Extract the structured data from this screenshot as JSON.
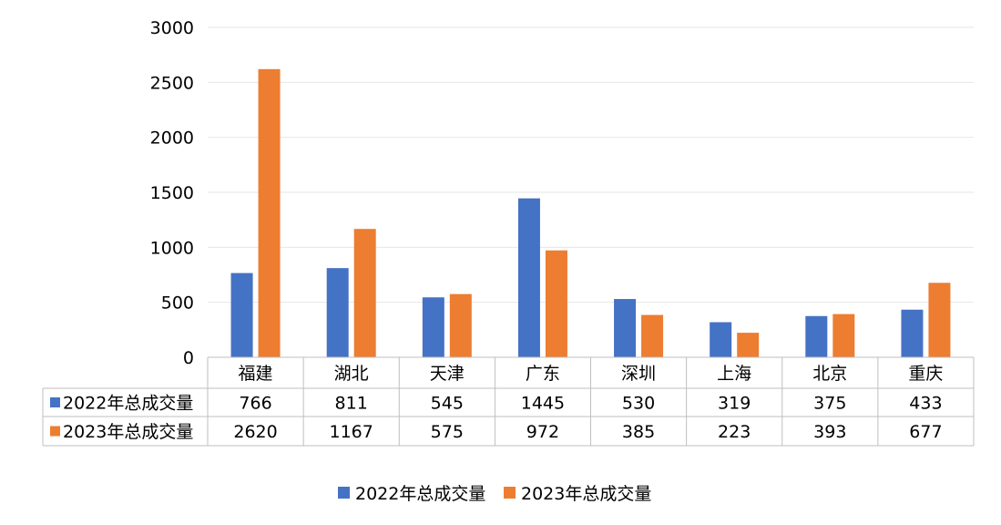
{
  "chart_data": {
    "type": "bar",
    "categories": [
      "福建",
      "湖北",
      "天津",
      "广东",
      "深圳",
      "上海",
      "北京",
      "重庆"
    ],
    "series": [
      {
        "name": "2022年总成交量",
        "color": "#4472C4",
        "values": [
          766,
          811,
          545,
          1445,
          530,
          319,
          375,
          433
        ]
      },
      {
        "name": "2023年总成交量",
        "color": "#ED7D31",
        "values": [
          2620,
          1167,
          575,
          972,
          385,
          223,
          393,
          677
        ]
      }
    ],
    "ylim": [
      0,
      3000
    ],
    "yticks": [
      0,
      500,
      1000,
      1500,
      2000,
      2500,
      3000
    ],
    "grid": true,
    "data_table": true,
    "legend_position": "bottom"
  }
}
